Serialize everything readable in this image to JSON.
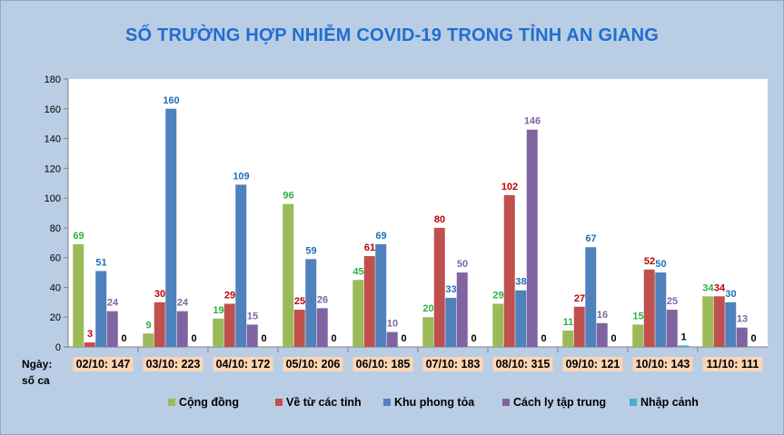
{
  "chart_data": {
    "type": "bar",
    "title": "SỐ TRƯỜNG HỢP NHIỄM COVID-19 TRONG TỈNH AN GIANG",
    "row_header_line1": "Ngày:",
    "row_header_line2": "số ca",
    "categories": [
      "02/10: 147",
      "03/10: 223",
      "04/10: 172",
      "05/10: 206",
      "06/10: 185",
      "07/10: 183",
      "08/10: 315",
      "09/10: 121",
      "10/10: 143",
      "11/10: 111"
    ],
    "series": [
      {
        "name": "Cộng đồng",
        "color": "#9bbb59",
        "label_color": "#2bb341",
        "values": [
          69,
          9,
          19,
          96,
          45,
          20,
          29,
          11,
          15,
          34
        ]
      },
      {
        "name": "Về từ các tỉnh",
        "color": "#c0504d",
        "label_color": "#c00000",
        "values": [
          3,
          30,
          29,
          25,
          61,
          80,
          102,
          27,
          52,
          34
        ]
      },
      {
        "name": "Khu phong tỏa",
        "color": "#4f81bd",
        "label_color": "#1f6fb5",
        "values": [
          51,
          160,
          109,
          59,
          69,
          33,
          38,
          67,
          50,
          30
        ]
      },
      {
        "name": "Cách ly tập trung",
        "color": "#8064a2",
        "label_color": "#8064a2",
        "values": [
          24,
          24,
          15,
          26,
          10,
          50,
          146,
          16,
          25,
          13
        ]
      },
      {
        "name": "Nhập cảnh",
        "color": "#4bacc6",
        "label_color": "#000000",
        "values": [
          0,
          0,
          0,
          0,
          0,
          0,
          0,
          0,
          1,
          0
        ]
      }
    ],
    "ylim": [
      0,
      180
    ],
    "yticks": [
      0,
      20,
      40,
      60,
      80,
      100,
      120,
      140,
      160,
      180
    ],
    "grid": false,
    "legend_position": "bottom",
    "category_label_background": "#fcd5b4"
  }
}
